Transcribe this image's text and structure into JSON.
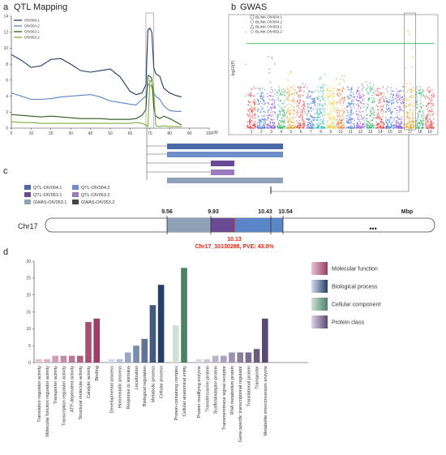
{
  "panels": {
    "a": {
      "letter": "a",
      "title": "QTL Mapping"
    },
    "b": {
      "letter": "b",
      "title": "GWAS"
    },
    "c": {
      "letter": "c"
    },
    "d": {
      "letter": "d"
    }
  },
  "colors": {
    "olv004_1": "#1f3a6a",
    "olv004_2": "#5a86c8",
    "olv053_1": "#2c5a1e",
    "olv053_2": "#7dac3e",
    "qtl_olv004_1": "#4a69a6",
    "qtl_olv004_2": "#6f8fc9",
    "qtl_olv053_1": "#6a4a94",
    "qtl_olv053_2": "#9a7cbe",
    "gwas_olv053_1": "#8fa1b6",
    "gwas_olv053_2": "#444444",
    "peak_red": "#e0281b",
    "threshold": "#3bb34a",
    "molecular_function": "#9c3d67",
    "biological_process": "#253f6b",
    "cellular_component": "#4d8266",
    "protein_class": "#5a4975"
  },
  "chart_data": [
    {
      "type": "line",
      "panel": "a",
      "title": "QTL Mapping",
      "xlabel": "cM",
      "xlim": [
        0,
        100
      ],
      "ylim": [
        0,
        14
      ],
      "xticks": [
        "0",
        "10",
        "20",
        "30",
        "40",
        "50",
        "60",
        "70",
        "80",
        "90",
        "100"
      ],
      "yticks": [
        "0",
        "2",
        "4",
        "6",
        "8",
        "10",
        "12",
        "14"
      ],
      "highlight_x": [
        68,
        72
      ],
      "series": [
        {
          "name": "OlV004.1",
          "color": "#1f3a6a",
          "x": [
            0,
            5,
            10,
            15,
            20,
            25,
            30,
            35,
            40,
            45,
            50,
            55,
            60,
            63,
            66,
            68,
            69,
            70,
            71,
            72,
            73,
            75,
            77,
            80,
            83,
            86
          ],
          "y": [
            9.2,
            8.5,
            7.6,
            7.8,
            8.6,
            8.7,
            8.0,
            7.2,
            7.0,
            7.2,
            7.4,
            6.4,
            4.6,
            4.2,
            4.4,
            5.4,
            12.3,
            12.5,
            12.0,
            7.5,
            6.8,
            6.5,
            5.0,
            4.4,
            4.1,
            3.9
          ]
        },
        {
          "name": "OlV004.2",
          "color": "#5a86c8",
          "x": [
            0,
            5,
            10,
            15,
            20,
            25,
            30,
            35,
            40,
            45,
            50,
            55,
            60,
            63,
            66,
            68,
            69,
            70,
            71,
            72,
            73,
            75,
            77,
            80,
            83,
            86
          ],
          "y": [
            4.4,
            4.0,
            3.6,
            3.6,
            3.7,
            3.9,
            4.0,
            4.1,
            4.2,
            3.9,
            3.4,
            3.2,
            3.0,
            2.9,
            3.6,
            4.0,
            5.5,
            5.4,
            5.2,
            4.4,
            4.0,
            3.6,
            2.8,
            2.2,
            2.1,
            2.1
          ]
        },
        {
          "name": "OlV053.1",
          "color": "#2c5a1e",
          "x": [
            0,
            5,
            10,
            15,
            20,
            25,
            30,
            35,
            40,
            45,
            50,
            55,
            60,
            63,
            66,
            68,
            69,
            70,
            71,
            72,
            73,
            75,
            77,
            80,
            83,
            86
          ],
          "y": [
            1.7,
            1.6,
            1.5,
            1.4,
            1.5,
            1.4,
            1.3,
            1.2,
            1.2,
            1.2,
            1.1,
            1.1,
            1.1,
            1.2,
            1.6,
            2.3,
            6.6,
            6.5,
            6.2,
            2.5,
            1.5,
            1.2,
            1.5,
            1.2,
            0.8,
            0.4
          ]
        },
        {
          "name": "OlV053.2",
          "color": "#7dac3e",
          "x": [
            0,
            5,
            10,
            15,
            20,
            25,
            30,
            35,
            40,
            45,
            50,
            55,
            60,
            63,
            66,
            68,
            69,
            70,
            71,
            72,
            73,
            75,
            77,
            80,
            83,
            86
          ],
          "y": [
            0.8,
            0.7,
            0.7,
            0.6,
            0.6,
            0.6,
            0.6,
            0.6,
            0.6,
            0.6,
            0.6,
            0.6,
            0.6,
            0.7,
            0.6,
            0.4,
            0.2,
            6.0,
            5.8,
            4.6,
            0.3,
            0.2,
            0.3,
            0.2,
            0.2,
            0.2
          ]
        }
      ]
    },
    {
      "type": "scatter",
      "panel": "b",
      "title": "GWAS",
      "ylabel": "-log10(P)",
      "ylim": [
        0,
        7
      ],
      "threshold": 5.3,
      "chromosomes": [
        "1",
        "2",
        "3",
        "4",
        "5",
        "6",
        "7",
        "8",
        "9",
        "10",
        "11",
        "12",
        "13",
        "14",
        "15",
        "16",
        "17",
        "18",
        "19"
      ],
      "chromosome_colors": [
        "#e84a4a",
        "#4a7bd6",
        "#8a5bd1",
        "#3cb371",
        "#e0a020",
        "#e84a4a",
        "#4a7bd6",
        "#2fb7b3",
        "#e8d040",
        "#e97d3b",
        "#4a7bd6",
        "#a05bd1",
        "#3cb371",
        "#e84a4a",
        "#4a7bd6",
        "#8a5bd1",
        "#e0a020",
        "#3cb371",
        "#e84a4a"
      ],
      "highlight_chromosome": "17",
      "legend": [
        "BLINK.OlV004.1",
        "BLINK.OlV004.2",
        "BLINK.OlV053.1",
        "BLINK.OlV053.2"
      ]
    },
    {
      "type": "bar",
      "panel": "d",
      "ylim": [
        0,
        30
      ],
      "yticks": [
        "0",
        "5",
        "10",
        "15",
        "20",
        "25",
        "30"
      ],
      "groups": [
        {
          "name": "Molecular function",
          "color_light": "#e6c3d2",
          "color_dark": "#9c3d67",
          "categories": [
            "Translation regulator activity",
            "Molecular function regulator activity",
            "Transporter activity",
            "Transcription regulator activity",
            "ATP-dependent activity",
            "Structural molecule activity",
            "Catalytic activity",
            "Binding"
          ],
          "values": [
            1,
            1,
            2,
            2,
            2,
            2,
            12,
            13
          ]
        },
        {
          "name": "Biological process",
          "color_light": "#d1dbef",
          "color_dark": "#253f6b",
          "categories": [
            "Developmental process",
            "Homeostatic process",
            "Response to stimulus",
            "Localization",
            "Biological regulation",
            "Metabolic process",
            "Cellular process"
          ],
          "values": [
            1,
            1,
            3,
            5,
            7,
            17,
            23
          ]
        },
        {
          "name": "Cellular component",
          "color_light": "#cfe0d5",
          "color_dark": "#4d8266",
          "categories": [
            "Protein-containing complex",
            "Cellular anatomical entity"
          ],
          "values": [
            11,
            28
          ]
        },
        {
          "name": "Protein class",
          "color_light": "#dcd6e5",
          "color_dark": "#5a4975",
          "categories": [
            "Protein modifying enzyme",
            "Transfer/carrier protein",
            "Scaffold/adaptor protein",
            "Transmembrane signal receptor",
            "RNA metabolism protein",
            "Gene-specific transcriptional regulator",
            "Translational protein",
            "Transporter",
            "Metabolite interconversion enzyme"
          ],
          "values": [
            1,
            1,
            2,
            2,
            3,
            3,
            3,
            4,
            13
          ]
        }
      ]
    }
  ],
  "panel_c": {
    "legend": [
      {
        "label": "QTL-OlV004.1",
        "color": "#4a69a6"
      },
      {
        "label": "QTL-OlV004.2",
        "color": "#6f8fc9"
      },
      {
        "label": "QTL-OlV053.1",
        "color": "#6a4a94"
      },
      {
        "label": "QTL-OlV053.2",
        "color": "#9a7cbe"
      },
      {
        "label": "GWAS-OlV053.1",
        "color": "#8fa1b6"
      },
      {
        "label": "GWAS-OlV053.2",
        "color": "#444444"
      }
    ],
    "chromosome": "Chr17",
    "unit": "Mbp",
    "ellipsis": "•••",
    "positions": [
      "9.56",
      "9.93",
      "10.43",
      "10.54"
    ],
    "peak_position": "10.13",
    "peak_label": "Chr17_10130288, PVE: 43.0%"
  }
}
